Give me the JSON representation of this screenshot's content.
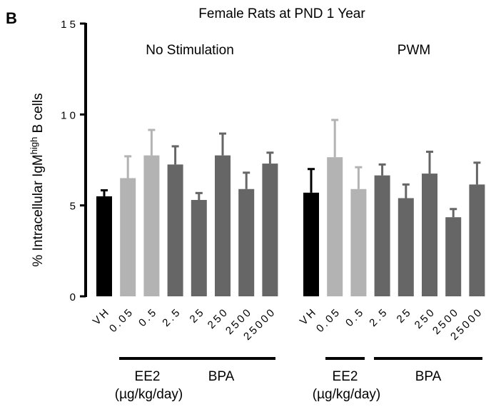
{
  "panel_label": "B",
  "chart_data": {
    "type": "bar",
    "title": "Female Rats at PND 1 Year",
    "ylabel_parts": [
      "% Intracellular IgM",
      "high",
      " B cells"
    ],
    "ylim": [
      0,
      15
    ],
    "yticks": [
      0,
      5,
      10,
      15
    ],
    "ytick_labels": [
      "0",
      "5",
      "1 0",
      "1 5"
    ],
    "colors": {
      "VH": "#000000",
      "EE2": "#b3b3b3",
      "BPA": "#666666"
    },
    "groups": [
      {
        "label": "No Stimulation",
        "categories": [
          "VH",
          "0.05",
          "0.5",
          "2.5",
          "25",
          "250",
          "2500",
          "25000"
        ],
        "values": [
          5.5,
          6.5,
          7.75,
          7.25,
          5.3,
          7.75,
          5.9,
          7.3
        ],
        "errors": [
          0.33,
          1.2,
          1.4,
          1.0,
          0.38,
          1.2,
          0.9,
          0.6
        ],
        "treatments": [
          "VH",
          "EE2",
          "EE2",
          "BPA",
          "BPA",
          "BPA",
          "BPA",
          "BPA"
        ],
        "brackets": [
          {
            "label": "EE2",
            "sublabel": "(µg/kg/day)"
          },
          {
            "label": "BPA"
          }
        ]
      },
      {
        "label": "PWM",
        "categories": [
          "VH",
          "0.05",
          "0.5",
          "2.5",
          "25",
          "250",
          "2500",
          "25000"
        ],
        "values": [
          5.7,
          7.65,
          5.9,
          6.65,
          5.4,
          6.75,
          4.35,
          6.15
        ],
        "errors": [
          1.3,
          2.05,
          1.2,
          0.6,
          0.75,
          1.2,
          0.45,
          1.2
        ],
        "treatments": [
          "VH",
          "EE2",
          "EE2",
          "BPA",
          "BPA",
          "BPA",
          "BPA",
          "BPA"
        ],
        "brackets": [
          {
            "label": "EE2",
            "sublabel": "(µg/kg/day)"
          },
          {
            "label": "BPA"
          }
        ]
      }
    ]
  }
}
